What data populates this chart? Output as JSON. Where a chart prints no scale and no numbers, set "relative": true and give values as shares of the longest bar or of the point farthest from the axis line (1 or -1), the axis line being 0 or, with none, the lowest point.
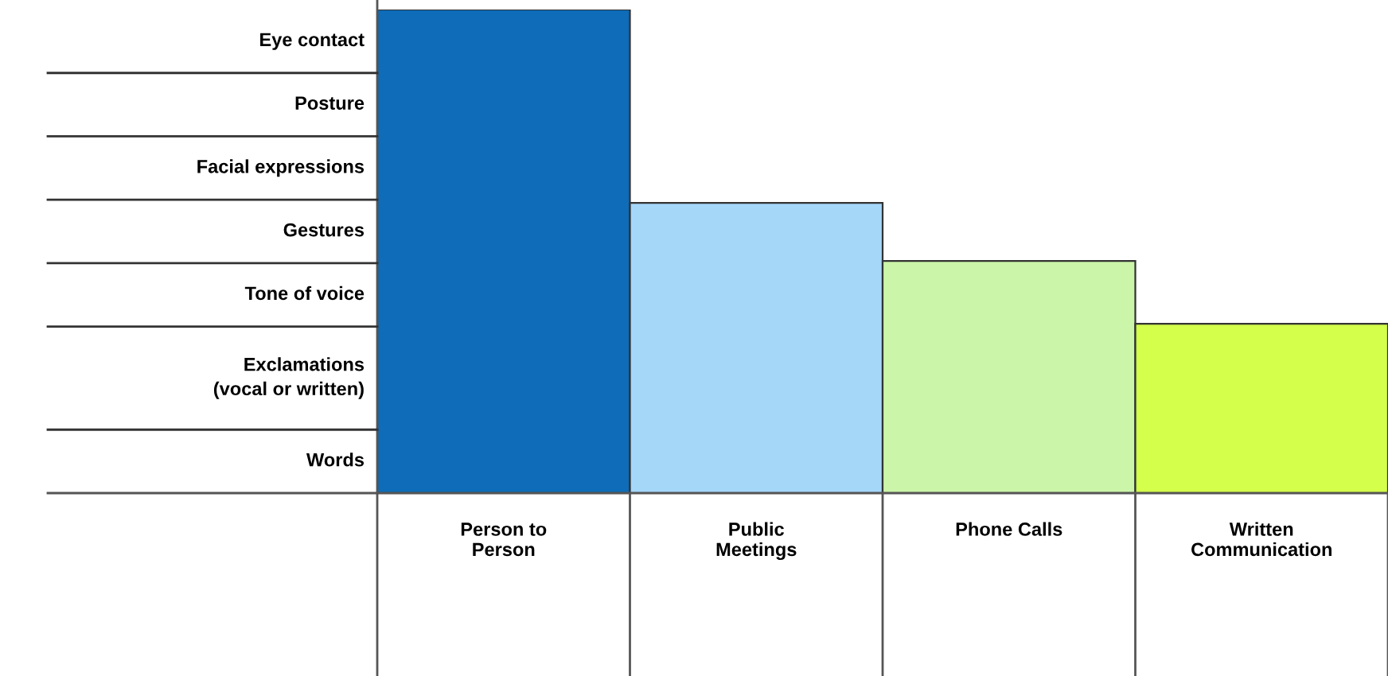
{
  "chart_data": {
    "type": "bar",
    "relative": true,
    "categories": [
      "Person to\nPerson",
      "Public\nMeetings",
      "Phone Calls",
      "Written\nCommunication"
    ],
    "values": [
      1,
      0.6,
      0.48,
      0.35
    ],
    "colors": [
      "#0e6cb8",
      "#a5d7f9",
      "#cbf5a8",
      "#d4ff4a"
    ],
    "annotations": [
      "Eye contact",
      "Posture",
      "Facial expressions",
      "Gestures",
      "Tone of voice",
      "Exclamations\n(vocal or written)",
      "Words"
    ]
  }
}
